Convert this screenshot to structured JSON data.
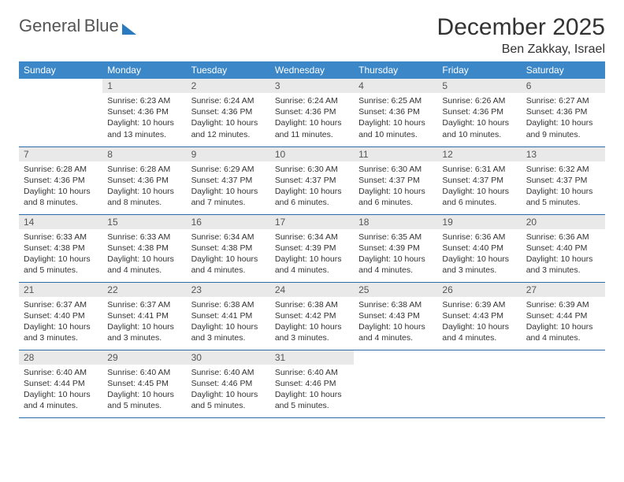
{
  "logo": {
    "line1": "General",
    "line2": "Blue"
  },
  "title": {
    "month": "December 2025",
    "location": "Ben Zakkay, Israel"
  },
  "colors": {
    "header_bg": "#3b87c8",
    "row_border": "#2a6aa8",
    "daynum_bg": "#e9e9e9",
    "logo_blue": "#2a7ac0",
    "text": "#333333"
  },
  "weekdays": [
    "Sunday",
    "Monday",
    "Tuesday",
    "Wednesday",
    "Thursday",
    "Friday",
    "Saturday"
  ],
  "weeks": [
    [
      null,
      {
        "n": "1",
        "sr": "6:23 AM",
        "ss": "4:36 PM",
        "dl": "10 hours and 13 minutes."
      },
      {
        "n": "2",
        "sr": "6:24 AM",
        "ss": "4:36 PM",
        "dl": "10 hours and 12 minutes."
      },
      {
        "n": "3",
        "sr": "6:24 AM",
        "ss": "4:36 PM",
        "dl": "10 hours and 11 minutes."
      },
      {
        "n": "4",
        "sr": "6:25 AM",
        "ss": "4:36 PM",
        "dl": "10 hours and 10 minutes."
      },
      {
        "n": "5",
        "sr": "6:26 AM",
        "ss": "4:36 PM",
        "dl": "10 hours and 10 minutes."
      },
      {
        "n": "6",
        "sr": "6:27 AM",
        "ss": "4:36 PM",
        "dl": "10 hours and 9 minutes."
      }
    ],
    [
      {
        "n": "7",
        "sr": "6:28 AM",
        "ss": "4:36 PM",
        "dl": "10 hours and 8 minutes."
      },
      {
        "n": "8",
        "sr": "6:28 AM",
        "ss": "4:36 PM",
        "dl": "10 hours and 8 minutes."
      },
      {
        "n": "9",
        "sr": "6:29 AM",
        "ss": "4:37 PM",
        "dl": "10 hours and 7 minutes."
      },
      {
        "n": "10",
        "sr": "6:30 AM",
        "ss": "4:37 PM",
        "dl": "10 hours and 6 minutes."
      },
      {
        "n": "11",
        "sr": "6:30 AM",
        "ss": "4:37 PM",
        "dl": "10 hours and 6 minutes."
      },
      {
        "n": "12",
        "sr": "6:31 AM",
        "ss": "4:37 PM",
        "dl": "10 hours and 6 minutes."
      },
      {
        "n": "13",
        "sr": "6:32 AM",
        "ss": "4:37 PM",
        "dl": "10 hours and 5 minutes."
      }
    ],
    [
      {
        "n": "14",
        "sr": "6:33 AM",
        "ss": "4:38 PM",
        "dl": "10 hours and 5 minutes."
      },
      {
        "n": "15",
        "sr": "6:33 AM",
        "ss": "4:38 PM",
        "dl": "10 hours and 4 minutes."
      },
      {
        "n": "16",
        "sr": "6:34 AM",
        "ss": "4:38 PM",
        "dl": "10 hours and 4 minutes."
      },
      {
        "n": "17",
        "sr": "6:34 AM",
        "ss": "4:39 PM",
        "dl": "10 hours and 4 minutes."
      },
      {
        "n": "18",
        "sr": "6:35 AM",
        "ss": "4:39 PM",
        "dl": "10 hours and 4 minutes."
      },
      {
        "n": "19",
        "sr": "6:36 AM",
        "ss": "4:40 PM",
        "dl": "10 hours and 3 minutes."
      },
      {
        "n": "20",
        "sr": "6:36 AM",
        "ss": "4:40 PM",
        "dl": "10 hours and 3 minutes."
      }
    ],
    [
      {
        "n": "21",
        "sr": "6:37 AM",
        "ss": "4:40 PM",
        "dl": "10 hours and 3 minutes."
      },
      {
        "n": "22",
        "sr": "6:37 AM",
        "ss": "4:41 PM",
        "dl": "10 hours and 3 minutes."
      },
      {
        "n": "23",
        "sr": "6:38 AM",
        "ss": "4:41 PM",
        "dl": "10 hours and 3 minutes."
      },
      {
        "n": "24",
        "sr": "6:38 AM",
        "ss": "4:42 PM",
        "dl": "10 hours and 3 minutes."
      },
      {
        "n": "25",
        "sr": "6:38 AM",
        "ss": "4:43 PM",
        "dl": "10 hours and 4 minutes."
      },
      {
        "n": "26",
        "sr": "6:39 AM",
        "ss": "4:43 PM",
        "dl": "10 hours and 4 minutes."
      },
      {
        "n": "27",
        "sr": "6:39 AM",
        "ss": "4:44 PM",
        "dl": "10 hours and 4 minutes."
      }
    ],
    [
      {
        "n": "28",
        "sr": "6:40 AM",
        "ss": "4:44 PM",
        "dl": "10 hours and 4 minutes."
      },
      {
        "n": "29",
        "sr": "6:40 AM",
        "ss": "4:45 PM",
        "dl": "10 hours and 5 minutes."
      },
      {
        "n": "30",
        "sr": "6:40 AM",
        "ss": "4:46 PM",
        "dl": "10 hours and 5 minutes."
      },
      {
        "n": "31",
        "sr": "6:40 AM",
        "ss": "4:46 PM",
        "dl": "10 hours and 5 minutes."
      },
      null,
      null,
      null
    ]
  ],
  "labels": {
    "sunrise": "Sunrise:",
    "sunset": "Sunset:",
    "daylight": "Daylight:"
  }
}
